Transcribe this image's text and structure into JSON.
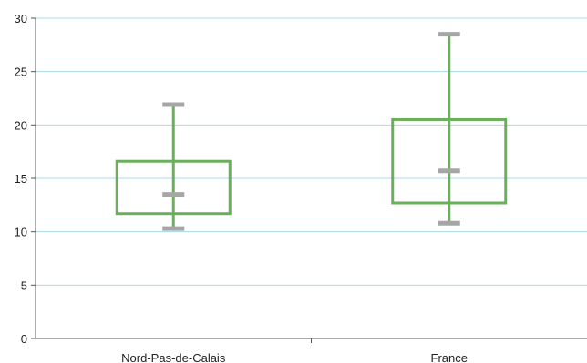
{
  "chart_data": {
    "type": "boxplot",
    "categories": [
      "Nord-Pas-de-Calais",
      "France"
    ],
    "series": [
      {
        "values": [
          {
            "min": 10.3,
            "q1": 11.7,
            "median": 13.5,
            "q3": 16.6,
            "max": 21.9
          },
          {
            "min": 10.8,
            "q1": 12.7,
            "median": 15.7,
            "q3": 20.5,
            "max": 28.5
          }
        ]
      }
    ],
    "ylim": [
      0,
      30
    ],
    "yticks": [
      "0",
      "5",
      "10",
      "15",
      "20",
      "25",
      "30"
    ],
    "title": "",
    "xlabel": "",
    "ylabel": "",
    "grid": true,
    "colors": {
      "box": "#6aaf5a",
      "whisker": "#6aaf5a",
      "marker": "#a6a6a6",
      "grid": "#a9d8ea",
      "axis": "#555555"
    }
  }
}
